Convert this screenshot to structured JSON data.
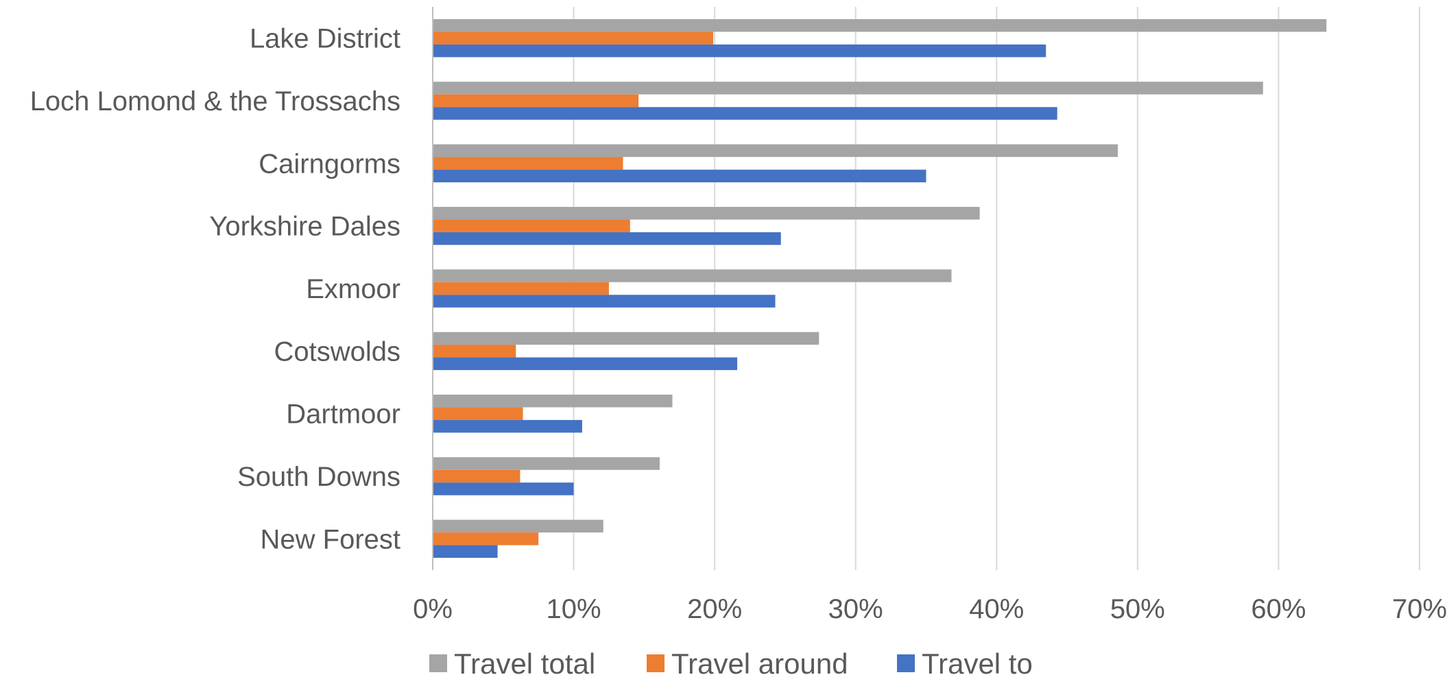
{
  "chart_data": {
    "type": "bar",
    "orientation": "horizontal",
    "title": "",
    "xlabel": "",
    "ylabel": "",
    "categories": [
      "Lake District",
      "Loch Lomond & the Trossachs",
      "Cairngorms",
      "Yorkshire Dales",
      "Exmoor",
      "Cotswolds",
      "Dartmoor",
      "South Downs",
      "New Forest"
    ],
    "series": [
      {
        "name": "Travel total",
        "color": "#a5a5a5",
        "values": [
          0.634,
          0.589,
          0.486,
          0.388,
          0.368,
          0.274,
          0.17,
          0.161,
          0.121
        ]
      },
      {
        "name": "Travel around",
        "color": "#ed7d31",
        "values": [
          0.199,
          0.146,
          0.135,
          0.14,
          0.125,
          0.059,
          0.064,
          0.062,
          0.075
        ]
      },
      {
        "name": "Travel to",
        "color": "#4472c4",
        "values": [
          0.435,
          0.443,
          0.35,
          0.247,
          0.243,
          0.216,
          0.106,
          0.1,
          0.046
        ]
      }
    ],
    "xlim": [
      0,
      0.7
    ],
    "ticks": [
      0,
      0.1,
      0.2,
      0.3,
      0.4,
      0.5,
      0.6,
      0.7
    ],
    "tick_labels": [
      "0%",
      "10%",
      "20%",
      "30%",
      "40%",
      "50%",
      "60%",
      "70%"
    ],
    "grid": true,
    "legend_position": "bottom"
  }
}
